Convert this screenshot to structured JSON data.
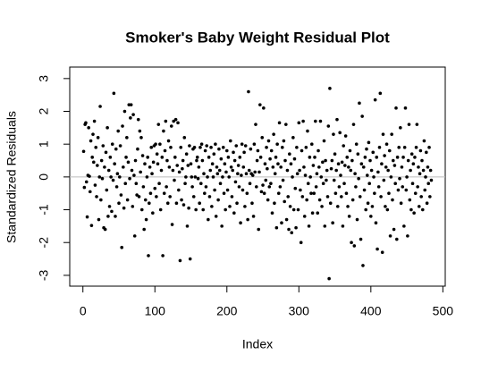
{
  "chart_data": {
    "type": "scatter",
    "title": "Smoker's Baby Weight Residual Plot",
    "x_label": "Index",
    "y_label": "Standardized Residuals",
    "xlim": [
      -18.3,
      503.3
    ],
    "ylim": [
      -3.33,
      3.35
    ],
    "xticks": [
      0,
      100,
      200,
      300,
      400,
      500
    ],
    "yticks": [
      -3,
      -2,
      -1,
      0,
      1,
      2,
      3
    ],
    "reference_line": 0,
    "color": "#000000",
    "reference_color": "#bbbbbb",
    "x": [
      1,
      2,
      3,
      4,
      5,
      6,
      7,
      8,
      9,
      10,
      11,
      12,
      13,
      14,
      15,
      16,
      17,
      18,
      19,
      20,
      21,
      22,
      23,
      24,
      25,
      26,
      27,
      28,
      29,
      30,
      31,
      32,
      33,
      34,
      35,
      36,
      37,
      38,
      39,
      40,
      41,
      42,
      43,
      44,
      45,
      46,
      47,
      48,
      49,
      50,
      51,
      52,
      53,
      54,
      55,
      56,
      57,
      58,
      59,
      60,
      61,
      62,
      63,
      64,
      65,
      66,
      67,
      68,
      69,
      70,
      71,
      72,
      73,
      74,
      75,
      76,
      77,
      78,
      79,
      80,
      81,
      82,
      83,
      84,
      85,
      86,
      87,
      88,
      89,
      90,
      91,
      92,
      93,
      94,
      95,
      96,
      97,
      98,
      99,
      100,
      101,
      102,
      103,
      104,
      105,
      106,
      107,
      108,
      109,
      110,
      111,
      112,
      113,
      114,
      115,
      116,
      117,
      118,
      119,
      120,
      121,
      122,
      123,
      124,
      125,
      126,
      127,
      128,
      129,
      130,
      131,
      132,
      133,
      134,
      135,
      136,
      137,
      138,
      139,
      140,
      141,
      142,
      143,
      144,
      145,
      146,
      147,
      148,
      149,
      150,
      151,
      152,
      153,
      154,
      155,
      156,
      157,
      158,
      159,
      160,
      161,
      162,
      163,
      164,
      165,
      166,
      167,
      168,
      169,
      170,
      171,
      172,
      173,
      174,
      175,
      176,
      177,
      178,
      179,
      180,
      181,
      182,
      183,
      184,
      185,
      186,
      187,
      188,
      189,
      190,
      191,
      192,
      193,
      194,
      195,
      196,
      197,
      198,
      199,
      200,
      201,
      202,
      203,
      204,
      205,
      206,
      207,
      208,
      209,
      210,
      211,
      212,
      213,
      214,
      215,
      216,
      217,
      218,
      219,
      220,
      221,
      222,
      223,
      224,
      225,
      226,
      227,
      228,
      229,
      230,
      231,
      232,
      233,
      234,
      235,
      236,
      237,
      238,
      239,
      240,
      241,
      242,
      243,
      244,
      245,
      246,
      247,
      248,
      249,
      250,
      251,
      252,
      253,
      254,
      255,
      256,
      257,
      258,
      259,
      260,
      261,
      262,
      263,
      264,
      265,
      266,
      267,
      268,
      269,
      270,
      271,
      272,
      273,
      274,
      275,
      276,
      277,
      278,
      279,
      280,
      281,
      282,
      283,
      284,
      285,
      286,
      287,
      288,
      289,
      290,
      291,
      292,
      293,
      294,
      295,
      296,
      297,
      298,
      299,
      300,
      301,
      302,
      303,
      304,
      305,
      306,
      307,
      308,
      309,
      310,
      311,
      312,
      313,
      314,
      315,
      316,
      317,
      318,
      319,
      320,
      321,
      322,
      323,
      324,
      325,
      326,
      327,
      328,
      329,
      330,
      331,
      332,
      333,
      334,
      335,
      336,
      337,
      338,
      339,
      340,
      341,
      342,
      343,
      344,
      345,
      346,
      347,
      348,
      349,
      350,
      351,
      352,
      353,
      354,
      355,
      356,
      357,
      358,
      359,
      360,
      361,
      362,
      363,
      364,
      365,
      366,
      367,
      368,
      369,
      370,
      371,
      372,
      373,
      374,
      375,
      376,
      377,
      378,
      379,
      380,
      381,
      382,
      383,
      384,
      385,
      386,
      387,
      388,
      389,
      390,
      391,
      392,
      393,
      394,
      395,
      396,
      397,
      398,
      399,
      400,
      401,
      402,
      403,
      404,
      405,
      406,
      407,
      408,
      409,
      410,
      411,
      412,
      413,
      414,
      415,
      416,
      417,
      418,
      419,
      420,
      421,
      422,
      423,
      424,
      425,
      426,
      427,
      428,
      429,
      430,
      431,
      432,
      433,
      434,
      435,
      436,
      437,
      438,
      439,
      440,
      441,
      442,
      443,
      444,
      445,
      446,
      447,
      448,
      449,
      450,
      451,
      452,
      453,
      454,
      455,
      456,
      457,
      458,
      459,
      460,
      461,
      462,
      463,
      464,
      465,
      466,
      467,
      468,
      469,
      470,
      471,
      472,
      473,
      474,
      475,
      476,
      477,
      478,
      479,
      480,
      481,
      482,
      483,
      484
    ],
    "values": [
      0.78,
      -0.32,
      1.6,
      1.65,
      -0.15,
      -1.22,
      0.05,
      1.5,
      0.02,
      -0.45,
      1.1,
      -1.48,
      0.6,
      1.3,
      0.45,
      1.7,
      -0.25,
      0.9,
      -0.6,
      0.35,
      1.2,
      -1.3,
      0.0,
      2.15,
      -0.7,
      0.5,
      -0.05,
      0.95,
      -1.55,
      0.3,
      -1.6,
      0.75,
      -0.4,
      1.5,
      -1.2,
      0.2,
      -0.9,
      0.6,
      0.0,
      -1.05,
      1.0,
      -0.1,
      2.55,
      0.4,
      -1.2,
      0.85,
      -0.3,
      0.1,
      1.4,
      -0.8,
      0.0,
      0.95,
      -0.55,
      -2.15,
      1.55,
      0.3,
      -0.95,
      2.0,
      -0.2,
      0.6,
      1.2,
      -0.7,
      0.45,
      2.2,
      -0.05,
      1.8,
      2.2,
      0.2,
      -0.9,
      1.9,
      0.05,
      -1.8,
      0.5,
      -0.2,
      -0.55,
      0.85,
      1.75,
      -0.6,
      1.4,
      0.15,
      1.2,
      -1.0,
      0.65,
      -0.3,
      -1.6,
      0.4,
      -0.7,
      -1.3,
      0.0,
      0.6,
      -2.4,
      -0.8,
      0.3,
      -0.5,
      0.9,
      0.1,
      -1.1,
      0.45,
      0.95,
      -0.35,
      1.0,
      -0.6,
      0.7,
      0.4,
      1.6,
      -0.2,
      1.0,
      -1.0,
      0.2,
      0.6,
      -2.4,
      1.4,
      -0.5,
      0.8,
      1.7,
      -0.3,
      0.5,
      -0.8,
      1.1,
      0.3,
      -0.6,
      0.9,
      1.55,
      -1.45,
      0.2,
      1.7,
      -0.1,
      0.6,
      1.75,
      -0.8,
      0.35,
      1.65,
      -0.4,
      0.15,
      -2.55,
      0.9,
      -0.7,
      0.25,
      0.5,
      -0.85,
      1.2,
      -0.2,
      0.0,
      0.7,
      -1.5,
      0.35,
      -0.95,
      0.95,
      -2.5,
      0.4,
      0.0,
      -0.3,
      0.85,
      -0.6,
      0.9,
      0.0,
      -1.0,
      0.5,
      0.6,
      -0.05,
      0.3,
      -0.8,
      0.9,
      -0.2,
      1.0,
      0.5,
      -1.0,
      0.1,
      -0.5,
      0.8,
      -0.3,
      0.95,
      0.0,
      -1.3,
      0.6,
      -0.6,
      0.2,
      0.9,
      -0.9,
      0.4,
      0.0,
      0.7,
      -0.4,
      1.0,
      -1.2,
      0.3,
      0.1,
      -0.7,
      0.85,
      0.2,
      -0.2,
      0.55,
      -1.5,
      0.0,
      0.9,
      -0.5,
      0.4,
      -1.0,
      0.15,
      0.8,
      -0.4,
      0.6,
      0.0,
      -0.9,
      1.1,
      0.3,
      -0.6,
      0.2,
      0.75,
      -1.1,
      0.5,
      -0.15,
      0.95,
      -0.8,
      0.1,
      0.35,
      -0.3,
      0.6,
      -1.4,
      0.05,
      1.0,
      -0.4,
      0.3,
      0.75,
      -0.9,
      0.95,
      0.1,
      -0.5,
      -1.3,
      2.6,
      0.2,
      -0.2,
      0.85,
      0.1,
      -0.8,
      0.05,
      -1.2,
      1.0,
      0.15,
      1.6,
      -0.3,
      0.5,
      0.8,
      -1.6,
      0.15,
      2.2,
      0.6,
      -0.45,
      1.2,
      -0.25,
      2.1,
      -0.5,
      0.4,
      -0.1,
      0.9,
      0.25,
      -0.7,
      1.1,
      -0.3,
      0.55,
      -0.2,
      0.8,
      -1.1,
      0.3,
      1.3,
      -0.8,
      0.1,
      0.6,
      -1.55,
      1.0,
      0.4,
      -0.5,
      1.65,
      -0.3,
      0.3,
      -1.4,
      0.9,
      -0.1,
      1.1,
      -0.75,
      0.5,
      1.6,
      -1.3,
      0.2,
      -0.6,
      -1.6,
      0.7,
      -0.9,
      0.4,
      -1.7,
      0.0,
      1.2,
      -1.0,
      0.55,
      -0.35,
      -1.55,
      0.9,
      0.1,
      -1.0,
      1.65,
      0.2,
      -0.4,
      -2.0,
      0.8,
      -0.6,
      1.7,
      0.3,
      -1.2,
      0.05,
      0.9,
      -0.7,
      1.4,
      -0.2,
      -1.5,
      0.6,
      0.0,
      -0.5,
      1.0,
      -1.1,
      0.35,
      -0.5,
      0.6,
      1.7,
      -0.3,
      0.1,
      -1.1,
      0.8,
      0.3,
      -0.7,
      1.7,
      0.0,
      -0.9,
      0.45,
      -0.2,
      1.1,
      -1.5,
      0.5,
      -0.1,
      0.2,
      -0.6,
      1.55,
      -3.1,
      2.7,
      -0.8,
      0.25,
      0.5,
      -1.4,
      1.3,
      -0.1,
      0.7,
      -0.5,
      0.2,
      1.75,
      -0.9,
      0.4,
      -0.3,
      1.35,
      0.05,
      -0.6,
      0.45,
      -1.5,
      0.95,
      -0.2,
      0.35,
      1.25,
      -0.5,
      0.6,
      -0.9,
      0.3,
      -1.2,
      0.8,
      0.2,
      -2.0,
      0.5,
      -0.7,
      1.6,
      -2.1,
      0.1,
      -0.3,
      1.0,
      -1.3,
      0.7,
      -0.05,
      2.25,
      -0.6,
      -1.9,
      0.4,
      1.85,
      -2.7,
      0.3,
      -0.4,
      0.6,
      -1.0,
      0.85,
      0.05,
      -0.8,
      1.05,
      -0.2,
      0.5,
      -1.2,
      0.2,
      -0.9,
      0.75,
      0.0,
      -0.5,
      2.35,
      -1.4,
      0.6,
      -2.2,
      0.15,
      -0.3,
      0.9,
      2.55,
      -0.6,
      0.4,
      -2.3,
      1.3,
      -0.1,
      0.65,
      -0.9,
      0.3,
      1.0,
      -1.0,
      0.2,
      -0.5,
      0.8,
      -1.8,
      0.0,
      1.3,
      -0.7,
      0.5,
      -1.6,
      0.35,
      -0.2,
      2.1,
      -1.9,
      0.6,
      -0.4,
      0.9,
      -0.05,
      1.5,
      -0.8,
      0.3,
      -0.3,
      0.6,
      -1.5,
      0.9,
      2.1,
      -0.4,
      0.0,
      -1.8,
      0.5,
      1.6,
      -0.7,
      0.2,
      -1.0,
      0.7,
      -0.2,
      0.4,
      -1.1,
      0.6,
      -0.5,
      0.9,
      1.6,
      -0.3,
      0.3,
      -0.9,
      0.1,
      0.8,
      -0.6,
      0.5,
      -1.0,
      0.2,
      1.1,
      -0.4,
      0.0,
      0.75,
      -0.8,
      0.3,
      -0.2,
      0.9,
      -0.6,
      0.2,
      -0.1
    ]
  }
}
